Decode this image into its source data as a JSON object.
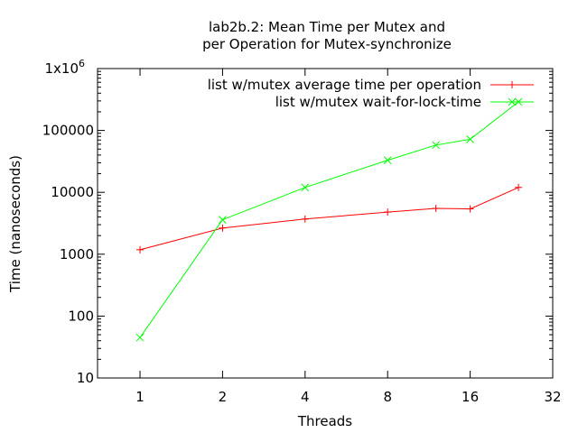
{
  "chart_data": {
    "type": "line",
    "title_lines": [
      "lab2b.2: Mean Time per Mutex and",
      "per Operation for Mutex-synchronize"
    ],
    "xlabel": "Threads",
    "ylabel": "Time (nanoseconds)",
    "x_scale": "log2",
    "y_scale": "log10",
    "xlim": [
      0.7,
      32
    ],
    "ylim": [
      10,
      1000000
    ],
    "x_ticks": [
      {
        "value": 1,
        "label": "1"
      },
      {
        "value": 2,
        "label": "2"
      },
      {
        "value": 4,
        "label": "4"
      },
      {
        "value": 8,
        "label": "8"
      },
      {
        "value": 16,
        "label": "16"
      },
      {
        "value": 32,
        "label": "32"
      }
    ],
    "y_ticks": [
      {
        "value": 10,
        "label": "10"
      },
      {
        "value": 100,
        "label": "100"
      },
      {
        "value": 1000,
        "label": "1000"
      },
      {
        "value": 10000,
        "label": "10000"
      },
      {
        "value": 100000,
        "label": "100000"
      },
      {
        "value": 1000000,
        "label": "1x10",
        "sup": "6"
      }
    ],
    "legend_position": "top-right",
    "grid": false,
    "series": [
      {
        "name": "list w/mutex average time per operation",
        "color": "#ff0000",
        "marker": "plus",
        "points": [
          {
            "x": 1,
            "y": 1180
          },
          {
            "x": 2,
            "y": 2650
          },
          {
            "x": 4,
            "y": 3700
          },
          {
            "x": 8,
            "y": 4800
          },
          {
            "x": 12,
            "y": 5500
          },
          {
            "x": 16,
            "y": 5400
          },
          {
            "x": 24,
            "y": 12000
          }
        ]
      },
      {
        "name": "list w/mutex wait-for-lock-time",
        "color": "#00ff00",
        "marker": "cross",
        "points": [
          {
            "x": 1,
            "y": 45
          },
          {
            "x": 2,
            "y": 3600
          },
          {
            "x": 4,
            "y": 12000
          },
          {
            "x": 8,
            "y": 33000
          },
          {
            "x": 12,
            "y": 58000
          },
          {
            "x": 16,
            "y": 72000
          },
          {
            "x": 24,
            "y": 290000
          }
        ]
      }
    ]
  }
}
